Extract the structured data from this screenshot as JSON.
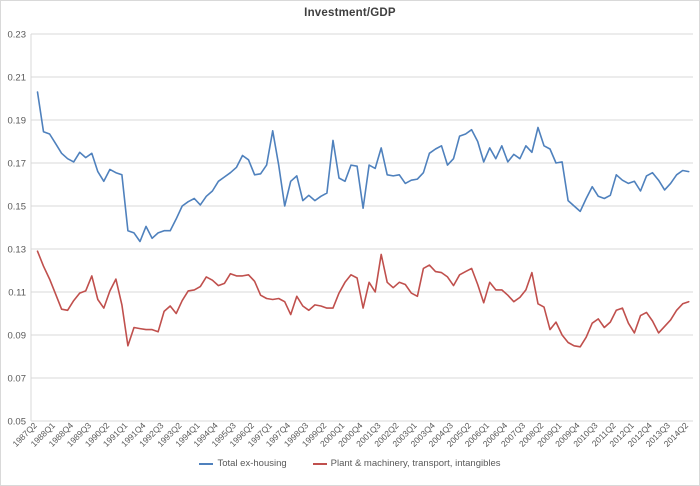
{
  "chart": {
    "title": "Investment/GDP",
    "y_axis_labels": [
      "0.23",
      "0.21",
      "0.19",
      "0.17",
      "0.15",
      "0.13",
      "0.11",
      "0.09",
      "0.07",
      "0.05"
    ],
    "legend": [
      "Total ex-housing",
      "Plant & machinery, transport, intangibles"
    ]
  },
  "chart_data": {
    "type": "line",
    "title": "Investment/GDP",
    "frequency": "quarterly",
    "x_start": "1987Q2",
    "x_end": "2014Q2",
    "n_points": 109,
    "x_tick_every": 3,
    "x_tick_labels": [
      "1987Q2",
      "1988Q1",
      "1988Q4",
      "1989Q3",
      "1990Q2",
      "1991Q1",
      "1991Q4",
      "1992Q3",
      "1993Q2",
      "1994Q1",
      "1994Q4",
      "1995Q3",
      "1996Q2",
      "1997Q1",
      "1997Q4",
      "1998Q3",
      "1999Q2",
      "2000Q1",
      "2000Q4",
      "2001Q3",
      "2002Q2",
      "2003Q1",
      "2003Q4",
      "2004Q3",
      "2005Q2",
      "2006Q1",
      "2006Q4",
      "2007Q3",
      "2008Q2",
      "2009Q1",
      "2009Q4",
      "2010Q3",
      "2011Q2",
      "2012Q1",
      "2012Q4",
      "2013Q3",
      "2014Q2"
    ],
    "ylim": [
      0.05,
      0.23
    ],
    "y_tick_step": 0.02,
    "grid": true,
    "legend_position": "bottom",
    "axis_color": "#d9d9d9",
    "grid_color": "#d9d9d9",
    "label_color": "#595959",
    "series": [
      {
        "name": "Total ex-housing",
        "color": "#4F81BD",
        "values": [
          0.203,
          0.1845,
          0.1835,
          0.179,
          0.1745,
          0.172,
          0.1705,
          0.175,
          0.1725,
          0.1745,
          0.166,
          0.1615,
          0.167,
          0.1655,
          0.1645,
          0.1385,
          0.1375,
          0.1335,
          0.1405,
          0.135,
          0.1375,
          0.1385,
          0.1385,
          0.144,
          0.15,
          0.152,
          0.1535,
          0.1505,
          0.1545,
          0.157,
          0.1615,
          0.1635,
          0.1655,
          0.168,
          0.1735,
          0.1715,
          0.1645,
          0.165,
          0.169,
          0.185,
          0.169,
          0.15,
          0.1615,
          0.164,
          0.1525,
          0.155,
          0.1525,
          0.1545,
          0.156,
          0.1805,
          0.163,
          0.1615,
          0.169,
          0.1685,
          0.149,
          0.169,
          0.1675,
          0.177,
          0.1645,
          0.164,
          0.1645,
          0.1605,
          0.162,
          0.1625,
          0.1655,
          0.1745,
          0.1765,
          0.178,
          0.169,
          0.172,
          0.1825,
          0.1835,
          0.1855,
          0.18,
          0.1705,
          0.177,
          0.172,
          0.178,
          0.1705,
          0.174,
          0.172,
          0.178,
          0.175,
          0.1865,
          0.178,
          0.1765,
          0.17,
          0.1705,
          0.1525,
          0.15,
          0.1475,
          0.1535,
          0.159,
          0.1545,
          0.1535,
          0.155,
          0.1645,
          0.162,
          0.1605,
          0.1615,
          0.157,
          0.164,
          0.1655,
          0.162,
          0.1575,
          0.1605,
          0.1645,
          0.1665,
          0.166
        ]
      },
      {
        "name": "Plant & machinery, transport, intangibles",
        "color": "#C0504D",
        "values": [
          0.129,
          0.122,
          0.116,
          0.109,
          0.102,
          0.1015,
          0.106,
          0.1095,
          0.1105,
          0.1175,
          0.1065,
          0.1025,
          0.1105,
          0.116,
          0.104,
          0.085,
          0.0935,
          0.093,
          0.0925,
          0.0925,
          0.0915,
          0.101,
          0.1035,
          0.1,
          0.106,
          0.1105,
          0.111,
          0.1125,
          0.117,
          0.1155,
          0.113,
          0.114,
          0.1185,
          0.1175,
          0.1175,
          0.118,
          0.115,
          0.1085,
          0.107,
          0.1065,
          0.107,
          0.1055,
          0.0995,
          0.108,
          0.1035,
          0.1015,
          0.104,
          0.1035,
          0.1025,
          0.1025,
          0.1095,
          0.1145,
          0.118,
          0.1165,
          0.1025,
          0.1145,
          0.11,
          0.1275,
          0.1145,
          0.112,
          0.1145,
          0.1135,
          0.1095,
          0.108,
          0.121,
          0.1225,
          0.1195,
          0.119,
          0.117,
          0.113,
          0.118,
          0.1195,
          0.121,
          0.1135,
          0.105,
          0.1145,
          0.111,
          0.111,
          0.1085,
          0.1055,
          0.1075,
          0.111,
          0.119,
          0.1045,
          0.103,
          0.0925,
          0.096,
          0.09,
          0.0865,
          0.085,
          0.0845,
          0.089,
          0.0955,
          0.0975,
          0.0935,
          0.096,
          0.1015,
          0.1025,
          0.0955,
          0.091,
          0.099,
          0.1005,
          0.0965,
          0.091,
          0.094,
          0.097,
          0.1015,
          0.1045,
          0.1055
        ]
      }
    ]
  }
}
